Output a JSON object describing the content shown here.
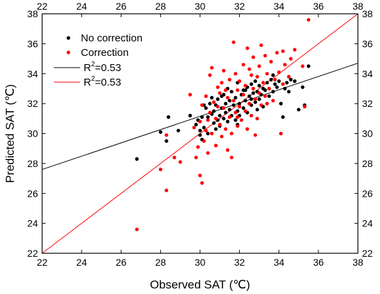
{
  "chart_data": {
    "type": "scatter",
    "xlabel": "Observed SAT (℃)",
    "ylabel": "Predicted SAT (℃)",
    "xlim": [
      22,
      38
    ],
    "ylim": [
      22,
      38
    ],
    "x_ticks": [
      "22",
      "24",
      "26",
      "28",
      "30",
      "32",
      "34",
      "36",
      "38"
    ],
    "y_ticks": [
      "22",
      "24",
      "26",
      "28",
      "30",
      "32",
      "34",
      "36",
      "38"
    ],
    "mirror_axes": true,
    "grid": false,
    "legend_position": "top-left",
    "legend": {
      "no_correction": "No correction",
      "correction": "Correction",
      "fit_black_prefix": "R",
      "fit_black_sup": "2",
      "fit_black_suffix": "=0.53",
      "fit_red_prefix": "R",
      "fit_red_sup": "2",
      "fit_red_suffix": "=0.53"
    },
    "series": [
      {
        "name": "No correction",
        "color": "#000000",
        "points": [
          [
            26.8,
            28.3
          ],
          [
            28.0,
            30.1
          ],
          [
            28.3,
            29.5
          ],
          [
            28.4,
            31.1
          ],
          [
            28.9,
            30.2
          ],
          [
            29.5,
            31.2
          ],
          [
            29.8,
            30.6
          ],
          [
            29.9,
            30.9
          ],
          [
            30.0,
            29.9
          ],
          [
            30.0,
            30.2
          ],
          [
            30.1,
            29.6
          ],
          [
            30.1,
            31.1
          ],
          [
            30.2,
            30.4
          ],
          [
            30.3,
            31.7
          ],
          [
            30.4,
            31.1
          ],
          [
            30.4,
            30.0
          ],
          [
            30.5,
            32.0
          ],
          [
            30.6,
            31.3
          ],
          [
            30.7,
            30.7
          ],
          [
            30.7,
            31.5
          ],
          [
            30.8,
            31.9
          ],
          [
            30.9,
            30.9
          ],
          [
            30.9,
            32.3
          ],
          [
            31.0,
            31.2
          ],
          [
            31.0,
            30.5
          ],
          [
            31.1,
            31.7
          ],
          [
            31.1,
            32.5
          ],
          [
            31.2,
            31.0
          ],
          [
            31.3,
            31.4
          ],
          [
            31.3,
            32.0
          ],
          [
            31.4,
            30.8
          ],
          [
            31.5,
            31.6
          ],
          [
            31.5,
            32.2
          ],
          [
            31.6,
            31.2
          ],
          [
            31.6,
            32.8
          ],
          [
            31.7,
            31.9
          ],
          [
            31.8,
            30.9
          ],
          [
            31.8,
            32.4
          ],
          [
            31.9,
            31.5
          ],
          [
            31.9,
            33.4
          ],
          [
            32.0,
            32.0
          ],
          [
            32.0,
            31.2
          ],
          [
            32.1,
            32.6
          ],
          [
            32.2,
            31.7
          ],
          [
            32.2,
            32.9
          ],
          [
            32.3,
            32.2
          ],
          [
            32.4,
            31.4
          ],
          [
            32.4,
            33.1
          ],
          [
            32.5,
            32.5
          ],
          [
            32.6,
            31.9
          ],
          [
            32.6,
            33.3
          ],
          [
            32.7,
            32.7
          ],
          [
            32.8,
            32.1
          ],
          [
            32.8,
            33.5
          ],
          [
            32.9,
            32.8
          ],
          [
            33.0,
            32.3
          ],
          [
            33.0,
            33.2
          ],
          [
            33.1,
            32.6
          ],
          [
            33.2,
            33.0
          ],
          [
            33.2,
            31.8
          ],
          [
            33.3,
            32.9
          ],
          [
            33.4,
            33.4
          ],
          [
            33.5,
            32.5
          ],
          [
            33.5,
            33.0
          ],
          [
            33.6,
            33.6
          ],
          [
            33.7,
            32.8
          ],
          [
            33.8,
            33.3
          ],
          [
            33.9,
            33.1
          ],
          [
            34.0,
            33.5
          ],
          [
            34.1,
            32.0
          ],
          [
            34.2,
            31.1
          ],
          [
            34.3,
            33.0
          ],
          [
            34.4,
            33.4
          ],
          [
            34.5,
            32.8
          ],
          [
            34.6,
            33.6
          ],
          [
            34.8,
            33.5
          ],
          [
            35.0,
            31.6
          ],
          [
            35.2,
            33.1
          ],
          [
            35.3,
            31.9
          ],
          [
            35.5,
            34.5
          ],
          [
            31.2,
            32.6
          ],
          [
            30.6,
            32.4
          ],
          [
            32.9,
            31.6
          ],
          [
            31.4,
            33.0
          ],
          [
            30.2,
            31.9
          ],
          [
            32.3,
            32.9
          ],
          [
            33.7,
            33.9
          ],
          [
            31.9,
            30.6
          ],
          [
            30.8,
            30.3
          ],
          [
            32.6,
            32.3
          ]
        ]
      },
      {
        "name": "Correction",
        "color": "#ff0000",
        "points": [
          [
            26.8,
            23.6
          ],
          [
            28.0,
            27.6
          ],
          [
            28.3,
            26.2
          ],
          [
            28.3,
            29.9
          ],
          [
            28.7,
            28.4
          ],
          [
            29.0,
            28.1
          ],
          [
            29.5,
            32.6
          ],
          [
            29.7,
            30.4
          ],
          [
            29.8,
            28.4
          ],
          [
            29.9,
            29.1
          ],
          [
            30.0,
            27.2
          ],
          [
            30.0,
            30.8
          ],
          [
            30.1,
            26.7
          ],
          [
            30.1,
            31.9
          ],
          [
            30.2,
            29.5
          ],
          [
            30.3,
            30.2
          ],
          [
            30.3,
            32.5
          ],
          [
            30.4,
            28.7
          ],
          [
            30.5,
            31.4
          ],
          [
            30.5,
            33.9
          ],
          [
            30.6,
            30.0
          ],
          [
            30.7,
            32.1
          ],
          [
            30.8,
            29.2
          ],
          [
            30.8,
            31.0
          ],
          [
            30.9,
            33.1
          ],
          [
            31.0,
            30.6
          ],
          [
            31.0,
            32.7
          ],
          [
            31.1,
            29.8
          ],
          [
            31.2,
            31.7
          ],
          [
            31.2,
            34.2
          ],
          [
            31.3,
            30.3
          ],
          [
            31.4,
            32.4
          ],
          [
            31.4,
            28.9
          ],
          [
            31.5,
            31.1
          ],
          [
            31.5,
            33.6
          ],
          [
            31.6,
            30.0
          ],
          [
            31.7,
            32.2
          ],
          [
            31.7,
            36.1
          ],
          [
            31.8,
            31.4
          ],
          [
            31.8,
            34.0
          ],
          [
            31.9,
            30.5
          ],
          [
            31.9,
            32.9
          ],
          [
            32.0,
            31.8
          ],
          [
            32.0,
            33.5
          ],
          [
            32.1,
            30.9
          ],
          [
            32.2,
            32.6
          ],
          [
            32.2,
            34.6
          ],
          [
            32.3,
            31.5
          ],
          [
            32.3,
            33.2
          ],
          [
            32.4,
            30.3
          ],
          [
            32.5,
            32.0
          ],
          [
            32.5,
            34.3
          ],
          [
            32.6,
            31.2
          ],
          [
            32.7,
            33.0
          ],
          [
            32.7,
            35.1
          ],
          [
            32.8,
            32.3
          ],
          [
            32.9,
            33.8
          ],
          [
            32.9,
            31.0
          ],
          [
            33.0,
            32.7
          ],
          [
            33.0,
            34.5
          ],
          [
            33.1,
            31.9
          ],
          [
            33.2,
            33.4
          ],
          [
            33.3,
            35.2
          ],
          [
            33.3,
            32.5
          ],
          [
            33.4,
            34.0
          ],
          [
            33.5,
            33.0
          ],
          [
            33.6,
            34.8
          ],
          [
            33.7,
            32.2
          ],
          [
            33.8,
            33.6
          ],
          [
            33.9,
            35.4
          ],
          [
            34.0,
            34.1
          ],
          [
            34.1,
            30.0
          ],
          [
            34.2,
            33.3
          ],
          [
            34.2,
            35.5
          ],
          [
            34.3,
            34.6
          ],
          [
            34.5,
            33.8
          ],
          [
            34.6,
            35.0
          ],
          [
            34.8,
            35.6
          ],
          [
            35.2,
            34.5
          ],
          [
            35.5,
            37.6
          ],
          [
            35.3,
            31.8
          ],
          [
            31.6,
            28.4
          ],
          [
            30.6,
            34.4
          ],
          [
            32.4,
            35.7
          ],
          [
            31.1,
            33.4
          ],
          [
            32.8,
            29.9
          ],
          [
            30.4,
            30.9
          ],
          [
            33.1,
            35.9
          ],
          [
            31.3,
            32.9
          ],
          [
            31.9,
            31.1
          ],
          [
            32.6,
            33.9
          ],
          [
            30.9,
            31.8
          ],
          [
            33.4,
            32.0
          ]
        ]
      }
    ],
    "fit_lines": [
      {
        "name": "black",
        "color": "#000000",
        "x": [
          22,
          38
        ],
        "y": [
          27.6,
          34.7
        ]
      },
      {
        "name": "red",
        "color": "#ff0000",
        "x": [
          22,
          38
        ],
        "y": [
          22,
          38
        ]
      }
    ]
  }
}
